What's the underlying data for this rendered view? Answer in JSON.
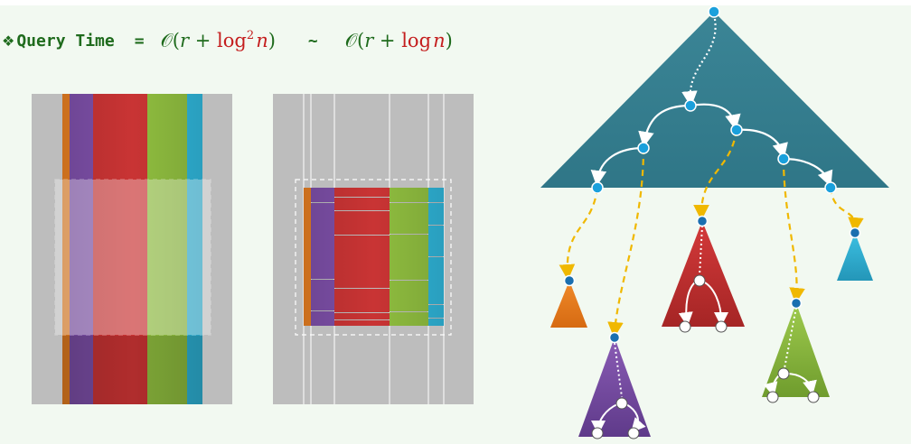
{
  "heading": {
    "bullet": "❖",
    "label": "Query Time",
    "equals": "=",
    "tilde": "~",
    "expr1": {
      "big_o": "𝒪",
      "open": "(",
      "r": "r",
      "plus": " + ",
      "log": "log",
      "exp": "2",
      "n": "n",
      "close": ")"
    },
    "expr2": {
      "big_o": "𝒪",
      "open": "(",
      "r": "r",
      "plus": " + ",
      "log": "log",
      "n": "n",
      "close": ")"
    }
  },
  "colors": {
    "background": "#f2f9f1",
    "gray": "#bdbdbd",
    "orange": "#e67e22",
    "purple": "#7d4fa8",
    "red": "#c93434",
    "green": "#8fbd3f",
    "cyan": "#2fb4d8",
    "tree": "#3a8394",
    "node": "#1aa0dc",
    "dash": "#f0b800",
    "text_green": "#1f6b1d",
    "text_red": "#c41e1e"
  },
  "icons": [
    "diamond-bullet-icon"
  ]
}
